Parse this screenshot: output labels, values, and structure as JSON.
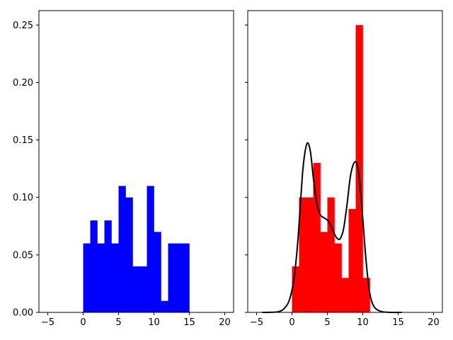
{
  "chart_data": [
    {
      "type": "bar",
      "subtype": "histogram",
      "color": "#0000ff",
      "xlim": [
        -6.25,
        21.25
      ],
      "ylim": [
        0,
        0.2625
      ],
      "xticks": [
        -5,
        0,
        5,
        10,
        15,
        20
      ],
      "yticks": [
        "0.00",
        "0.05",
        "0.10",
        "0.15",
        "0.20",
        "0.25"
      ],
      "yticks_labeled": true,
      "bin_edges": [
        0,
        1,
        2,
        3,
        4,
        5,
        6,
        7,
        8,
        9,
        10,
        11,
        12,
        13,
        14,
        15
      ],
      "values": [
        0.06,
        0.08,
        0.06,
        0.08,
        0.06,
        0.11,
        0.1,
        0.04,
        0.04,
        0.11,
        0.07,
        0.01,
        0.06,
        0.06,
        0.06
      ]
    },
    {
      "type": "bar",
      "subtype": "histogram with density line",
      "color": "#ff0000",
      "line_color": "#000000",
      "xlim": [
        -6.25,
        21.25
      ],
      "ylim": [
        0,
        0.2625
      ],
      "xticks": [
        -5,
        0,
        5,
        10,
        15,
        20
      ],
      "yticks": [
        "0.00",
        "0.05",
        "0.10",
        "0.15",
        "0.20",
        "0.25"
      ],
      "yticks_labeled": false,
      "bin_edges": [
        0,
        1,
        2,
        3,
        4,
        5,
        6,
        7,
        8,
        9,
        10,
        11
      ],
      "values": [
        0.04,
        0.1,
        0.1,
        0.13,
        0.07,
        0.1,
        0.06,
        0.03,
        0.09,
        0.25,
        0.03
      ],
      "line": {
        "x": [
          -4.2,
          -2,
          -1,
          -0.3,
          0.3,
          0.8,
          1.2,
          1.6,
          2.13,
          2.6,
          3.0,
          3.5,
          4.0,
          4.6,
          5.2,
          5.8,
          6.3,
          6.8,
          7.3,
          7.8,
          8.3,
          8.9,
          9.4,
          9.9,
          10.4,
          10.9,
          11.5,
          12.5,
          14,
          15.5
        ],
        "y": [
          0,
          0.0005,
          0.004,
          0.012,
          0.03,
          0.06,
          0.095,
          0.128,
          0.147,
          0.14,
          0.118,
          0.095,
          0.085,
          0.082,
          0.079,
          0.071,
          0.065,
          0.064,
          0.073,
          0.095,
          0.12,
          0.131,
          0.122,
          0.09,
          0.05,
          0.02,
          0.006,
          0.001,
          0,
          0
        ]
      }
    }
  ]
}
